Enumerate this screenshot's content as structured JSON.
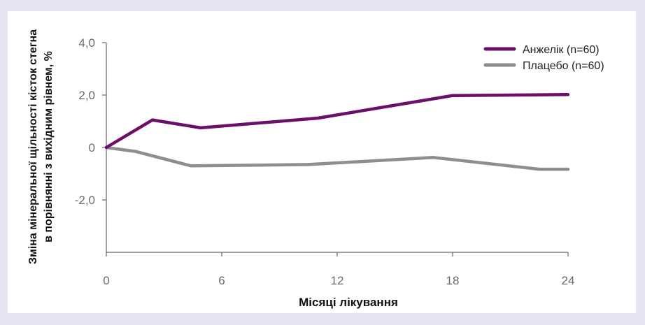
{
  "chart_data": {
    "type": "line",
    "xlabel": "Місяці лікування",
    "ylabel_lines": [
      "Зміна мінеральної щільності кісток стегна",
      "в порівнянні з вихідним рівнем, %"
    ],
    "x_ticks": [
      {
        "value": 0,
        "label": "0"
      },
      {
        "value": 6,
        "label": "6"
      },
      {
        "value": 12,
        "label": "12"
      },
      {
        "value": 18,
        "label": "18"
      },
      {
        "value": 24,
        "label": "24"
      }
    ],
    "y_ticks": [
      {
        "value": 4,
        "label": "4,0"
      },
      {
        "value": 2,
        "label": "2,0"
      },
      {
        "value": 0,
        "label": "0"
      },
      {
        "value": -2,
        "label": "-2,0"
      }
    ],
    "xlim": [
      0,
      24
    ],
    "ylim": [
      -4,
      4
    ],
    "grid": false,
    "legend_position": "top-right",
    "series": [
      {
        "name": "Анжелік (n=60)",
        "color": "#6b0f6b",
        "points": [
          [
            0,
            0
          ],
          [
            2.4,
            1.05
          ],
          [
            4.9,
            0.75
          ],
          [
            11,
            1.12
          ],
          [
            18,
            1.98
          ],
          [
            24,
            2.02
          ]
        ]
      },
      {
        "name": "Плацебо (n=60)",
        "color": "#8e8e8e",
        "points": [
          [
            0,
            0
          ],
          [
            1.5,
            -0.15
          ],
          [
            4.4,
            -0.7
          ],
          [
            10.5,
            -0.65
          ],
          [
            17,
            -0.38
          ],
          [
            22.5,
            -0.83
          ],
          [
            24,
            -0.83
          ]
        ]
      }
    ]
  }
}
